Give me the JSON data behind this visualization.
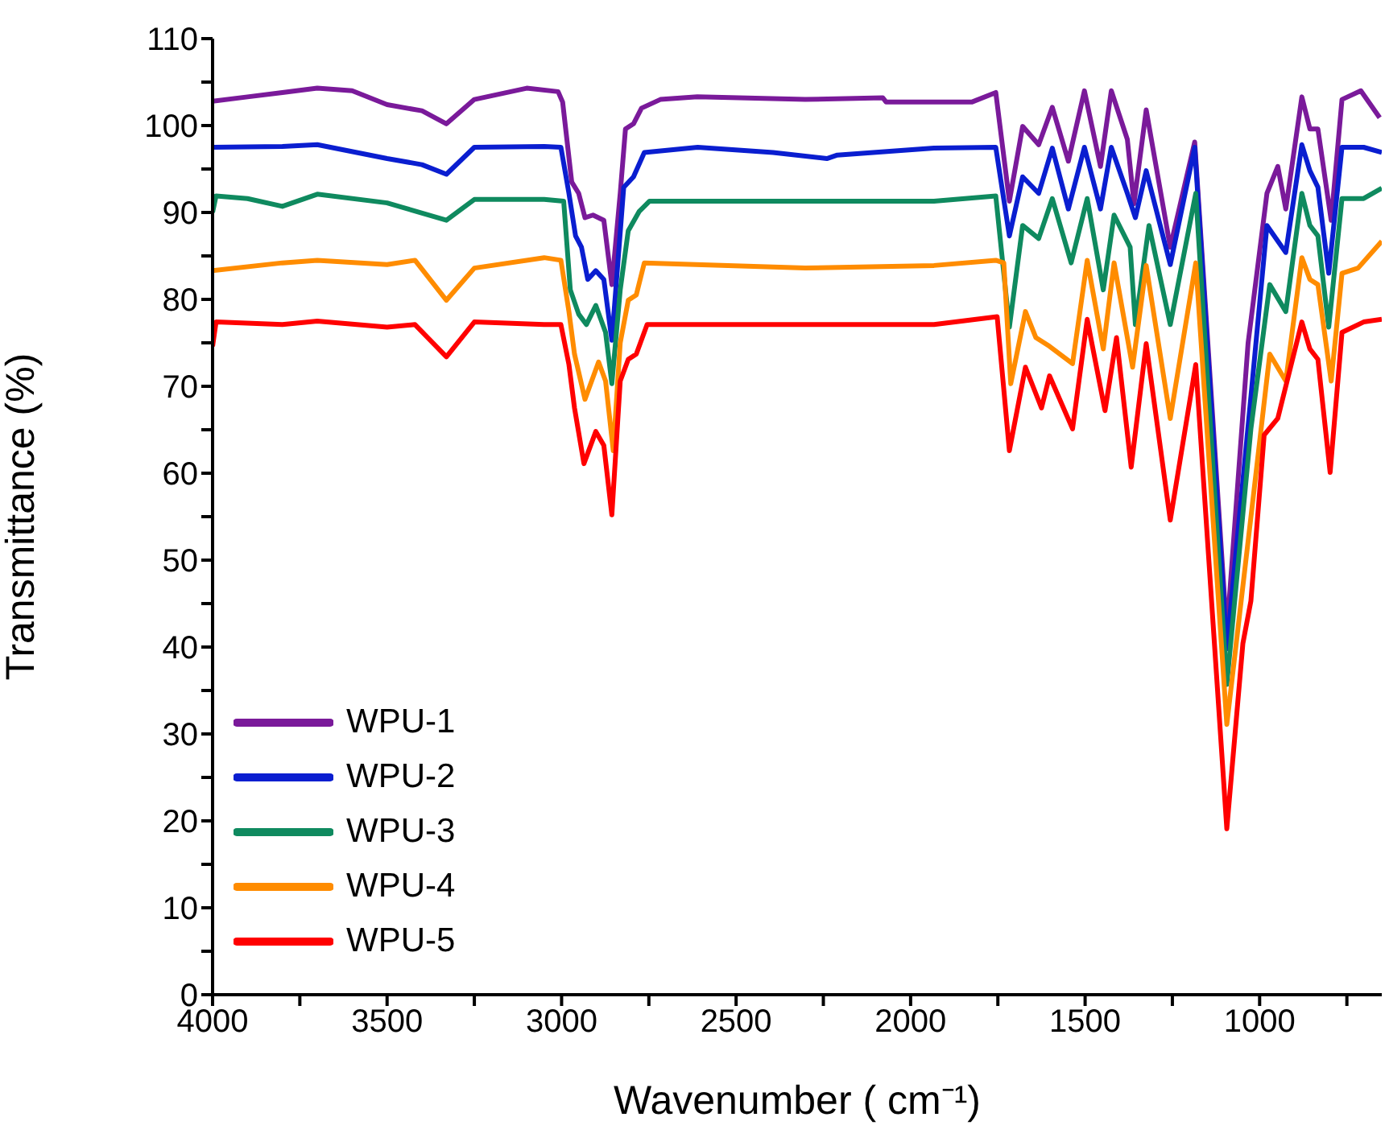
{
  "chart_data": {
    "type": "line",
    "xlabel": "Wavenumber ( cm⁻¹)",
    "ylabel": "Transmittance (%)",
    "xlim": [
      4000,
      650
    ],
    "xticks": [
      4000,
      {
        "value": 3750,
        "label": null
      },
      3500,
      {
        "value": 3250,
        "label": null
      },
      3000,
      {
        "value": 2750,
        "label": null
      },
      2500,
      {
        "value": 2250,
        "label": null
      },
      2000,
      {
        "value": 1750,
        "label": null
      },
      1500,
      {
        "value": 1250,
        "label": null
      },
      1000,
      {
        "value": 750,
        "label": null
      }
    ],
    "ylim": [
      0,
      110
    ],
    "yticks": [
      0,
      {
        "value": 5,
        "label": null
      },
      10,
      {
        "value": 15,
        "label": null
      },
      20,
      {
        "value": 25,
        "label": null
      },
      30,
      {
        "value": 35,
        "label": null
      },
      40,
      {
        "value": 45,
        "label": null
      },
      50,
      {
        "value": 55,
        "label": null
      },
      60,
      {
        "value": 65,
        "label": null
      },
      70,
      {
        "value": 75,
        "label": null
      },
      80,
      {
        "value": 85,
        "label": null
      },
      90,
      {
        "value": 95,
        "label": null
      },
      100,
      {
        "value": 105,
        "label": null
      },
      110
    ],
    "legend": "bottom left",
    "series": [
      {
        "name": "WPU-1",
        "color": "#7a1a9a",
        "x": [
          4000,
          3900,
          3800,
          3700,
          3600,
          3500,
          3400,
          3330,
          3250,
          3100,
          3010,
          2997,
          2971,
          2951,
          2933,
          2910,
          2879,
          2856,
          2832,
          2817,
          2794,
          2771,
          2717,
          2611,
          2302,
          2080,
          2070,
          1825,
          1756,
          1717,
          1679,
          1633,
          1594,
          1548,
          1502,
          1456,
          1425,
          1379,
          1360,
          1325,
          1256,
          1186,
          1094,
          1033,
          979,
          948,
          925,
          879,
          856,
          833,
          795,
          764,
          710,
          656
        ],
        "values": [
          102.8,
          103.3,
          103.8,
          104.3,
          104,
          102.4,
          101.7,
          100.2,
          103,
          104.3,
          103.9,
          102.7,
          93.5,
          92.2,
          89.4,
          89.7,
          89.1,
          81.7,
          92.2,
          99.6,
          100.2,
          102,
          103,
          103.3,
          103,
          103.2,
          102.7,
          102.7,
          103.8,
          91.3,
          99.9,
          97.8,
          102.1,
          95.9,
          104,
          95.3,
          104,
          98.4,
          91,
          101.8,
          86,
          98.1,
          41.6,
          75,
          92.2,
          95.3,
          90.4,
          103.3,
          99.6,
          99.6,
          89.1,
          103,
          104,
          100.9
        ]
      },
      {
        "name": "WPU-2",
        "color": "#0a1ed0",
        "x": [
          4000,
          3800,
          3700,
          3500,
          3400,
          3330,
          3250,
          3050,
          3002,
          2979,
          2960,
          2943,
          2925,
          2902,
          2879,
          2856,
          2822,
          2794,
          2763,
          2610,
          2394,
          2240,
          2210,
          1933,
          1756,
          1717,
          1679,
          1633,
          1594,
          1548,
          1502,
          1456,
          1425,
          1379,
          1356,
          1325,
          1256,
          1186,
          1094,
          1025,
          979,
          925,
          879,
          856,
          833,
          802,
          764,
          702,
          650
        ],
        "values": [
          97.5,
          97.6,
          97.8,
          96.2,
          95.5,
          94.4,
          97.5,
          97.6,
          97.5,
          92.2,
          87.3,
          86,
          82.3,
          83.3,
          82.3,
          75.3,
          92.9,
          94.1,
          96.9,
          97.5,
          96.9,
          96.2,
          96.6,
          97.4,
          97.5,
          87.3,
          94.1,
          92.2,
          97.4,
          90.4,
          97.5,
          90.4,
          97.5,
          92.2,
          89.4,
          94.8,
          84,
          97.5,
          39.8,
          68.8,
          88.5,
          85.4,
          97.8,
          94.8,
          92.9,
          83,
          97.5,
          97.5,
          96.9
        ]
      },
      {
        "name": "WPU-3",
        "color": "#0f8a5f",
        "x": [
          4000,
          3990,
          3900,
          3800,
          3700,
          3500,
          3330,
          3250,
          3050,
          2994,
          2975,
          2951,
          2929,
          2902,
          2874,
          2856,
          2832,
          2809,
          2778,
          2748,
          2302,
          1933,
          1756,
          1717,
          1679,
          1633,
          1594,
          1540,
          1494,
          1448,
          1417,
          1371,
          1356,
          1317,
          1256,
          1183,
          1094,
          1025,
          971,
          925,
          879,
          856,
          833,
          802,
          764,
          702,
          650
        ],
        "values": [
          90,
          91.9,
          91.6,
          90.7,
          92.1,
          91.1,
          89.1,
          91.5,
          91.5,
          91.3,
          81.1,
          78.3,
          77.1,
          79.3,
          76.2,
          70.3,
          81.1,
          87.9,
          90.1,
          91.3,
          91.3,
          91.3,
          91.9,
          76.8,
          88.5,
          87,
          91.6,
          84.2,
          91.6,
          81.1,
          89.7,
          86,
          77.1,
          88.5,
          77.1,
          92.2,
          35.7,
          65.1,
          81.7,
          78.6,
          92.2,
          88.5,
          87.3,
          76.8,
          91.6,
          91.6,
          92.8
        ]
      },
      {
        "name": "WPU-4",
        "color": "#ff8c00",
        "x": [
          4000,
          3800,
          3700,
          3500,
          3420,
          3330,
          3250,
          3050,
          3002,
          2979,
          2963,
          2933,
          2894,
          2874,
          2852,
          2832,
          2809,
          2786,
          2763,
          2302,
          1933,
          1756,
          1733,
          1713,
          1671,
          1641,
          1602,
          1536,
          1494,
          1448,
          1417,
          1364,
          1325,
          1256,
          1183,
          1094,
          1017,
          971,
          925,
          879,
          856,
          833,
          795,
          764,
          718,
          650
        ],
        "values": [
          83.3,
          84.2,
          84.5,
          84,
          84.5,
          79.9,
          83.6,
          84.8,
          84.5,
          78.6,
          73.7,
          68.5,
          72.8,
          70.6,
          62.6,
          75,
          79.9,
          80.5,
          84.2,
          83.6,
          83.9,
          84.5,
          84.2,
          70.3,
          78.6,
          75.6,
          74.6,
          72.6,
          84.5,
          74.3,
          84.2,
          72.2,
          83.9,
          66.3,
          84.2,
          31.1,
          57.7,
          73.7,
          70.6,
          84.8,
          82.3,
          81.7,
          70.6,
          83,
          83.6,
          86.7
        ]
      },
      {
        "name": "WPU-5",
        "color": "#ff0000",
        "x": [
          4000,
          3990,
          3800,
          3700,
          3500,
          3420,
          3330,
          3250,
          3050,
          3002,
          2979,
          2963,
          2936,
          2902,
          2879,
          2856,
          2832,
          2809,
          2786,
          2755,
          2302,
          1933,
          1752,
          1717,
          1671,
          1625,
          1602,
          1536,
          1494,
          1443,
          1410,
          1368,
          1325,
          1256,
          1183,
          1094,
          1048,
          1025,
          987,
          948,
          879,
          856,
          833,
          798,
          764,
          702,
          650
        ],
        "values": [
          74.6,
          77.4,
          77.1,
          77.5,
          76.8,
          77.1,
          73.4,
          77.4,
          77.1,
          77.1,
          72.5,
          67.5,
          61.1,
          64.8,
          63.2,
          55.2,
          70.6,
          73.1,
          73.7,
          77.1,
          77.1,
          77.1,
          78,
          62.6,
          72.2,
          67.5,
          71.2,
          65.1,
          77.7,
          67.2,
          75.6,
          60.7,
          74.9,
          54.6,
          72.5,
          19.1,
          40.4,
          45.3,
          64.4,
          66.3,
          77.4,
          74.3,
          73.1,
          60.1,
          76.2,
          77.4,
          77.7
        ]
      }
    ]
  }
}
